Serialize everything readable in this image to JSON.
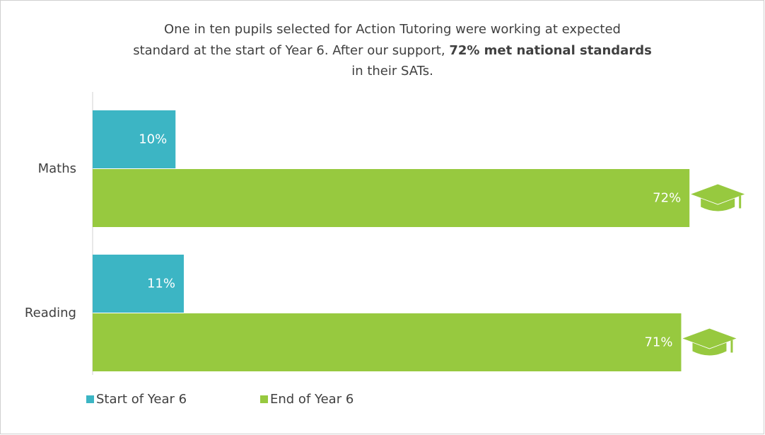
{
  "chart_data": {
    "type": "bar",
    "orientation": "horizontal",
    "title": {
      "line1": "One in ten pupils selected for Action Tutoring were working at expected",
      "line2": "standard at the start of Year 6. After our support,",
      "line2_bold": "72% met national standards",
      "line3": "in their SATs."
    },
    "categories": [
      "Maths",
      "Reading"
    ],
    "series": [
      {
        "name": "Start of Year 6",
        "color": "#3cb5c4",
        "values": [
          10,
          11
        ],
        "value_labels": [
          "10%",
          "11%"
        ]
      },
      {
        "name": "End of Year 6",
        "color": "#97c93f",
        "values": [
          72,
          71
        ],
        "value_labels": [
          "72%",
          "71%"
        ]
      }
    ],
    "xlim": [
      0,
      80
    ],
    "legend": "bottom-left"
  }
}
